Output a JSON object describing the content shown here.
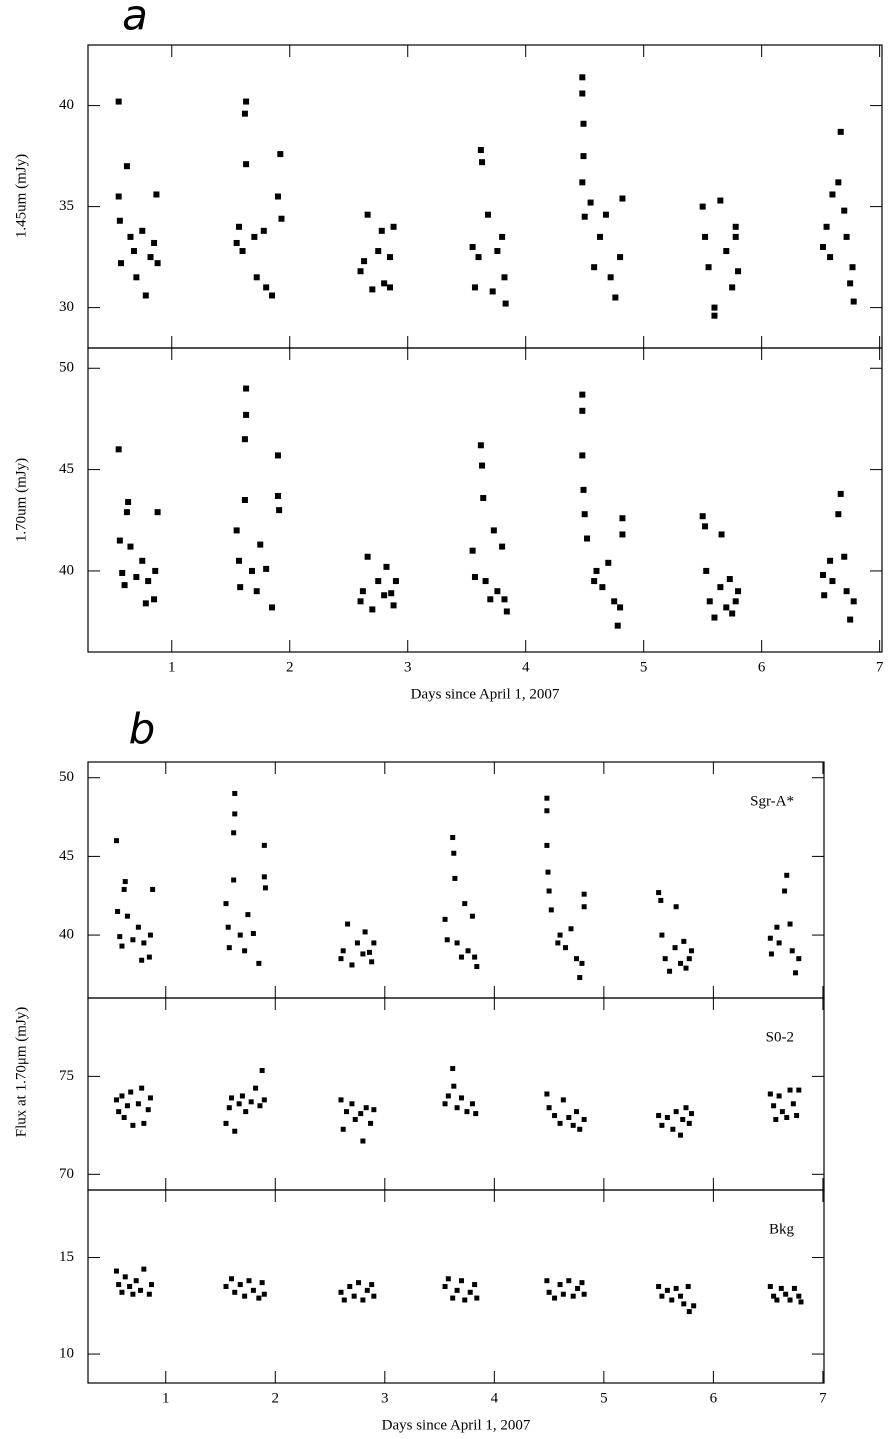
{
  "chart_data": [
    {
      "type": "scatter",
      "panel_label": "a",
      "ylabel": "1.45um (mJy)",
      "color": "#000000",
      "xlim": [
        0.29,
        7.02
      ],
      "xticks": [
        1,
        2,
        3,
        4,
        5,
        6,
        7
      ],
      "ylim": [
        28,
        43
      ],
      "yticks": [
        30,
        35,
        40
      ],
      "x": [
        0.55,
        0.55,
        0.56,
        0.57,
        0.62,
        0.65,
        0.68,
        0.7,
        0.75,
        0.78,
        0.82,
        0.87,
        0.88,
        0.85,
        1.55,
        1.57,
        1.6,
        1.63,
        1.62,
        1.63,
        1.7,
        1.72,
        1.78,
        1.8,
        1.85,
        1.92,
        1.9,
        1.93,
        2.6,
        2.63,
        2.66,
        2.7,
        2.75,
        2.78,
        2.8,
        2.85,
        2.88,
        2.85,
        3.55,
        3.57,
        3.6,
        3.62,
        3.63,
        3.68,
        3.72,
        3.76,
        3.8,
        3.83,
        3.82,
        4.48,
        4.48,
        4.49,
        4.49,
        4.48,
        4.5,
        4.55,
        4.58,
        4.63,
        4.68,
        4.72,
        4.76,
        4.8,
        4.82,
        5.5,
        5.52,
        5.55,
        5.6,
        5.6,
        5.65,
        5.7,
        5.75,
        5.78,
        5.78,
        5.8,
        6.52,
        6.55,
        6.58,
        6.6,
        6.65,
        6.67,
        6.7,
        6.72,
        6.75,
        6.78,
        6.77
      ],
      "values": [
        40.2,
        35.5,
        34.3,
        32.2,
        37,
        33.5,
        32.8,
        31.5,
        33.8,
        30.6,
        32.5,
        35.6,
        32.2,
        33.2,
        33.2,
        34,
        32.8,
        40.2,
        39.6,
        37.1,
        33.5,
        31.5,
        33.8,
        31,
        30.6,
        37.6,
        35.5,
        34.4,
        31.8,
        32.3,
        34.6,
        30.9,
        32.8,
        33.8,
        31.2,
        32.5,
        34,
        31,
        33,
        31,
        32.5,
        37.8,
        37.2,
        34.6,
        30.8,
        32.8,
        33.5,
        30.2,
        31.5,
        41.4,
        40.6,
        39.1,
        37.5,
        36.2,
        34.5,
        35.2,
        32,
        33.5,
        34.6,
        31.5,
        30.5,
        32.5,
        35.4,
        35,
        33.5,
        32,
        30,
        29.6,
        35.3,
        32.8,
        31,
        33.5,
        34,
        31.8,
        33,
        34,
        32.5,
        35.6,
        36.2,
        38.7,
        34.8,
        33.5,
        31.2,
        30.3,
        32
      ]
    },
    {
      "type": "scatter",
      "ylabel": "1.70um (mJy)",
      "xlabel": "Days since April 1, 2007",
      "color": "#000000",
      "xlim": [
        0.29,
        7.02
      ],
      "xticks": [
        1,
        2,
        3,
        4,
        5,
        6,
        7
      ],
      "ylim": [
        36,
        51
      ],
      "yticks": [
        40,
        45,
        50
      ],
      "x": [
        0.55,
        0.56,
        0.58,
        0.6,
        0.63,
        0.62,
        0.65,
        0.7,
        0.75,
        0.78,
        0.8,
        0.85,
        0.88,
        0.86,
        1.55,
        1.57,
        1.58,
        1.63,
        1.63,
        1.62,
        1.62,
        1.68,
        1.72,
        1.75,
        1.8,
        1.85,
        1.9,
        1.9,
        1.91,
        2.6,
        2.62,
        2.66,
        2.7,
        2.75,
        2.8,
        2.82,
        2.88,
        2.9,
        2.86,
        3.55,
        3.57,
        3.62,
        3.63,
        3.64,
        3.66,
        3.7,
        3.73,
        3.76,
        3.8,
        3.84,
        3.82,
        4.48,
        4.48,
        4.48,
        4.49,
        4.5,
        4.52,
        4.58,
        4.6,
        4.65,
        4.7,
        4.75,
        4.78,
        4.8,
        4.82,
        4.82,
        5.5,
        5.52,
        5.53,
        5.56,
        5.6,
        5.66,
        5.65,
        5.7,
        5.73,
        5.75,
        5.8,
        5.78,
        6.52,
        6.53,
        6.58,
        6.6,
        6.65,
        6.67,
        6.7,
        6.72,
        6.75,
        6.78
      ],
      "values": [
        46,
        41.5,
        39.9,
        39.3,
        43.4,
        42.9,
        41.2,
        39.7,
        40.5,
        38.4,
        39.5,
        38.6,
        42.9,
        40,
        42,
        40.5,
        39.2,
        49,
        47.7,
        46.5,
        43.5,
        40,
        39,
        41.3,
        40.1,
        38.2,
        45.7,
        43.7,
        43,
        38.5,
        39,
        40.7,
        38.1,
        39.5,
        38.8,
        40.2,
        38.3,
        39.5,
        38.9,
        41,
        39.7,
        46.2,
        45.2,
        43.6,
        39.5,
        38.6,
        42,
        39,
        41.2,
        38,
        38.6,
        48.7,
        47.9,
        45.7,
        44,
        42.8,
        41.6,
        39.5,
        40,
        39.2,
        40.4,
        38.5,
        37.3,
        38.2,
        42.6,
        41.8,
        42.7,
        42.2,
        40,
        38.5,
        37.7,
        41.8,
        39.2,
        38.2,
        39.6,
        37.9,
        39,
        38.5,
        39.8,
        38.8,
        40.5,
        39.5,
        42.8,
        43.8,
        40.7,
        39,
        37.6,
        38.5
      ]
    },
    {
      "type": "scatter",
      "panel_label": "b",
      "annotation": "Sgr-A*",
      "color": "#000000",
      "xlim": [
        0.29,
        7.01
      ],
      "xticks": [
        1,
        2,
        3,
        4,
        5,
        6,
        7
      ],
      "ylim": [
        36,
        51
      ],
      "yticks": [
        40,
        45,
        50
      ],
      "x": [
        0.55,
        0.56,
        0.58,
        0.6,
        0.63,
        0.62,
        0.65,
        0.7,
        0.75,
        0.78,
        0.8,
        0.85,
        0.88,
        0.86,
        1.55,
        1.57,
        1.58,
        1.63,
        1.63,
        1.62,
        1.62,
        1.68,
        1.72,
        1.75,
        1.8,
        1.85,
        1.9,
        1.9,
        1.91,
        2.6,
        2.62,
        2.66,
        2.7,
        2.75,
        2.8,
        2.82,
        2.88,
        2.9,
        2.86,
        3.55,
        3.57,
        3.62,
        3.63,
        3.64,
        3.66,
        3.7,
        3.73,
        3.76,
        3.8,
        3.84,
        3.82,
        4.48,
        4.48,
        4.48,
        4.49,
        4.5,
        4.52,
        4.58,
        4.6,
        4.65,
        4.7,
        4.75,
        4.78,
        4.8,
        4.82,
        4.82,
        5.5,
        5.52,
        5.53,
        5.56,
        5.6,
        5.66,
        5.65,
        5.7,
        5.73,
        5.75,
        5.8,
        5.78,
        6.52,
        6.53,
        6.58,
        6.6,
        6.65,
        6.67,
        6.7,
        6.72,
        6.75,
        6.78
      ],
      "values": [
        46,
        41.5,
        39.9,
        39.3,
        43.4,
        42.9,
        41.2,
        39.7,
        40.5,
        38.4,
        39.5,
        38.6,
        42.9,
        40,
        42,
        40.5,
        39.2,
        49,
        47.7,
        46.5,
        43.5,
        40,
        39,
        41.3,
        40.1,
        38.2,
        45.7,
        43.7,
        43,
        38.5,
        39,
        40.7,
        38.1,
        39.5,
        38.8,
        40.2,
        38.3,
        39.5,
        38.9,
        41,
        39.7,
        46.2,
        45.2,
        43.6,
        39.5,
        38.6,
        42,
        39,
        41.2,
        38,
        38.6,
        48.7,
        47.9,
        45.7,
        44,
        42.8,
        41.6,
        39.5,
        40,
        39.2,
        40.4,
        38.5,
        37.3,
        38.2,
        42.6,
        41.8,
        42.7,
        42.2,
        40,
        38.5,
        37.7,
        41.8,
        39.2,
        38.2,
        39.6,
        37.9,
        39,
        38.5,
        39.8,
        38.8,
        40.5,
        39.5,
        42.8,
        43.8,
        40.7,
        39,
        37.6,
        38.5
      ]
    },
    {
      "type": "scatter",
      "annotation": "S0-2",
      "ylabel": "Flux at 1.70μm (mJy)",
      "color": "#000000",
      "xlim": [
        0.29,
        7.01
      ],
      "xticks": [
        1,
        2,
        3,
        4,
        5,
        6,
        7
      ],
      "ylim": [
        69.2,
        79
      ],
      "yticks": [
        70,
        75
      ],
      "x": [
        0.55,
        0.57,
        0.6,
        0.62,
        0.65,
        0.68,
        0.7,
        0.75,
        0.78,
        0.8,
        0.84,
        0.86,
        1.55,
        1.58,
        1.6,
        1.63,
        1.67,
        1.7,
        1.73,
        1.78,
        1.82,
        1.86,
        1.88,
        1.9,
        2.6,
        2.62,
        2.65,
        2.7,
        2.73,
        2.78,
        2.8,
        2.83,
        2.87,
        2.9,
        3.55,
        3.58,
        3.62,
        3.63,
        3.66,
        3.7,
        3.75,
        3.8,
        3.83,
        4.48,
        4.5,
        4.55,
        4.6,
        4.63,
        4.68,
        4.72,
        4.75,
        4.78,
        4.82,
        5.5,
        5.53,
        5.58,
        5.63,
        5.66,
        5.7,
        5.72,
        5.75,
        5.78,
        5.8,
        6.52,
        6.55,
        6.57,
        6.6,
        6.63,
        6.67,
        6.7,
        6.73,
        6.76,
        6.78
      ],
      "values": [
        73.8,
        73.2,
        74,
        72.9,
        73.5,
        74.2,
        72.5,
        73.6,
        74.4,
        72.6,
        73.3,
        73.9,
        72.6,
        73.4,
        73.9,
        72.2,
        73.6,
        74,
        73.2,
        73.7,
        74.4,
        73.5,
        75.3,
        73.8,
        73.8,
        72.3,
        73.2,
        73.6,
        72.8,
        73.1,
        71.7,
        73.4,
        72.6,
        73.3,
        73.6,
        74,
        75.4,
        74.5,
        73.4,
        73.9,
        73.2,
        73.6,
        73.1,
        74.1,
        73.4,
        73,
        72.6,
        73.8,
        72.9,
        72.5,
        73.2,
        72.3,
        72.8,
        73,
        72.5,
        72.9,
        72.3,
        73.2,
        72,
        72.8,
        73.4,
        72.6,
        73.1,
        74.1,
        73.5,
        72.8,
        74,
        73.2,
        72.9,
        74.3,
        73.6,
        73,
        74.3
      ]
    },
    {
      "type": "scatter",
      "annotation": "Bkg",
      "xlabel": "Days since April 1, 2007",
      "color": "#000000",
      "xlim": [
        0.29,
        7.01
      ],
      "xticks": [
        1,
        2,
        3,
        4,
        5,
        6,
        7
      ],
      "ylim": [
        8.5,
        18.5
      ],
      "yticks": [
        10,
        15
      ],
      "x": [
        0.55,
        0.57,
        0.6,
        0.63,
        0.67,
        0.7,
        0.73,
        0.77,
        0.8,
        0.85,
        0.87,
        1.55,
        1.6,
        1.63,
        1.68,
        1.72,
        1.76,
        1.8,
        1.85,
        1.88,
        1.9,
        2.6,
        2.63,
        2.68,
        2.72,
        2.76,
        2.8,
        2.84,
        2.88,
        2.9,
        3.55,
        3.58,
        3.62,
        3.66,
        3.7,
        3.73,
        3.78,
        3.82,
        3.84,
        4.48,
        4.5,
        4.55,
        4.6,
        4.63,
        4.68,
        4.72,
        4.76,
        4.8,
        4.82,
        5.5,
        5.53,
        5.58,
        5.62,
        5.66,
        5.7,
        5.73,
        5.77,
        5.78,
        5.82,
        6.52,
        6.55,
        6.58,
        6.62,
        6.66,
        6.7,
        6.74,
        6.78,
        6.8
      ],
      "values": [
        14.3,
        13.6,
        13.2,
        14,
        13.5,
        13.1,
        13.8,
        13.3,
        14.4,
        13.1,
        13.6,
        13.5,
        13.9,
        13.2,
        13.6,
        13,
        13.8,
        13.3,
        12.9,
        13.7,
        13.1,
        13.2,
        12.8,
        13.5,
        13,
        13.7,
        12.8,
        13.3,
        13.6,
        13,
        13.5,
        13.9,
        12.9,
        13.3,
        13.8,
        12.8,
        13.2,
        13.6,
        12.9,
        13.8,
        13.2,
        12.9,
        13.6,
        13.1,
        13.8,
        13,
        13.4,
        13.7,
        13.1,
        13.5,
        13,
        13.3,
        12.8,
        13.4,
        13,
        12.6,
        13.5,
        12.2,
        12.5,
        13.5,
        13,
        12.8,
        13.4,
        13.1,
        12.8,
        13.4,
        13,
        12.7
      ]
    }
  ]
}
